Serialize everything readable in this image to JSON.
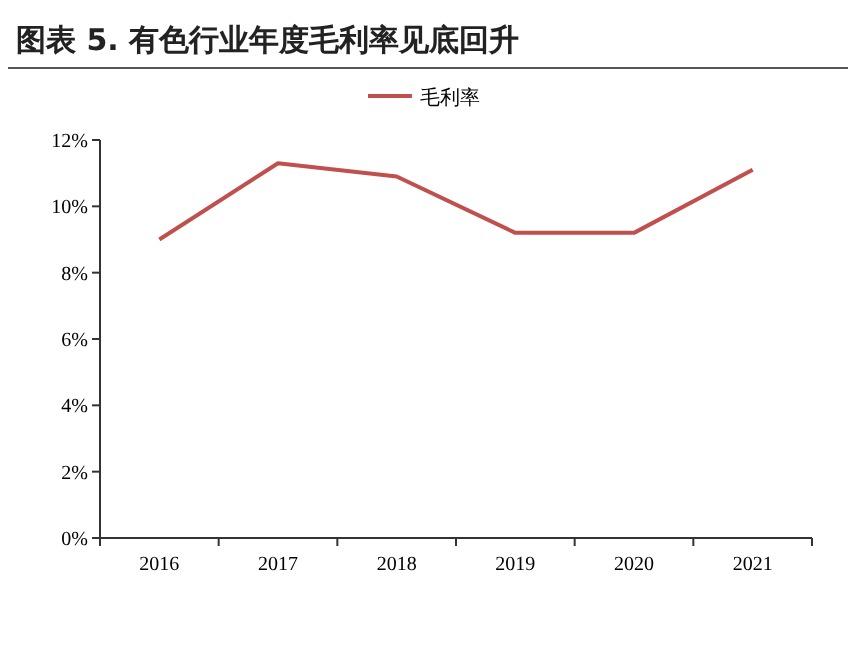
{
  "chart_data": {
    "type": "line",
    "title": "图表 5.  有色行业年度毛利率见底回升",
    "categories": [
      "2016",
      "2017",
      "2018",
      "2019",
      "2020",
      "2021"
    ],
    "series": [
      {
        "name": "毛利率",
        "color": "#c0504d",
        "values": [
          9.0,
          11.3,
          10.9,
          9.2,
          9.2,
          11.1
        ]
      }
    ],
    "ylim": [
      0,
      12
    ],
    "yticks": [
      {
        "value": 0,
        "label": "0%"
      },
      {
        "value": 2,
        "label": "2%"
      },
      {
        "value": 4,
        "label": "4%"
      },
      {
        "value": 6,
        "label": "6%"
      },
      {
        "value": 8,
        "label": "8%"
      },
      {
        "value": 10,
        "label": "10%"
      },
      {
        "value": 12,
        "label": "12%"
      }
    ],
    "grid": false,
    "legend": "top",
    "marker": "none",
    "line_style": "solid"
  }
}
